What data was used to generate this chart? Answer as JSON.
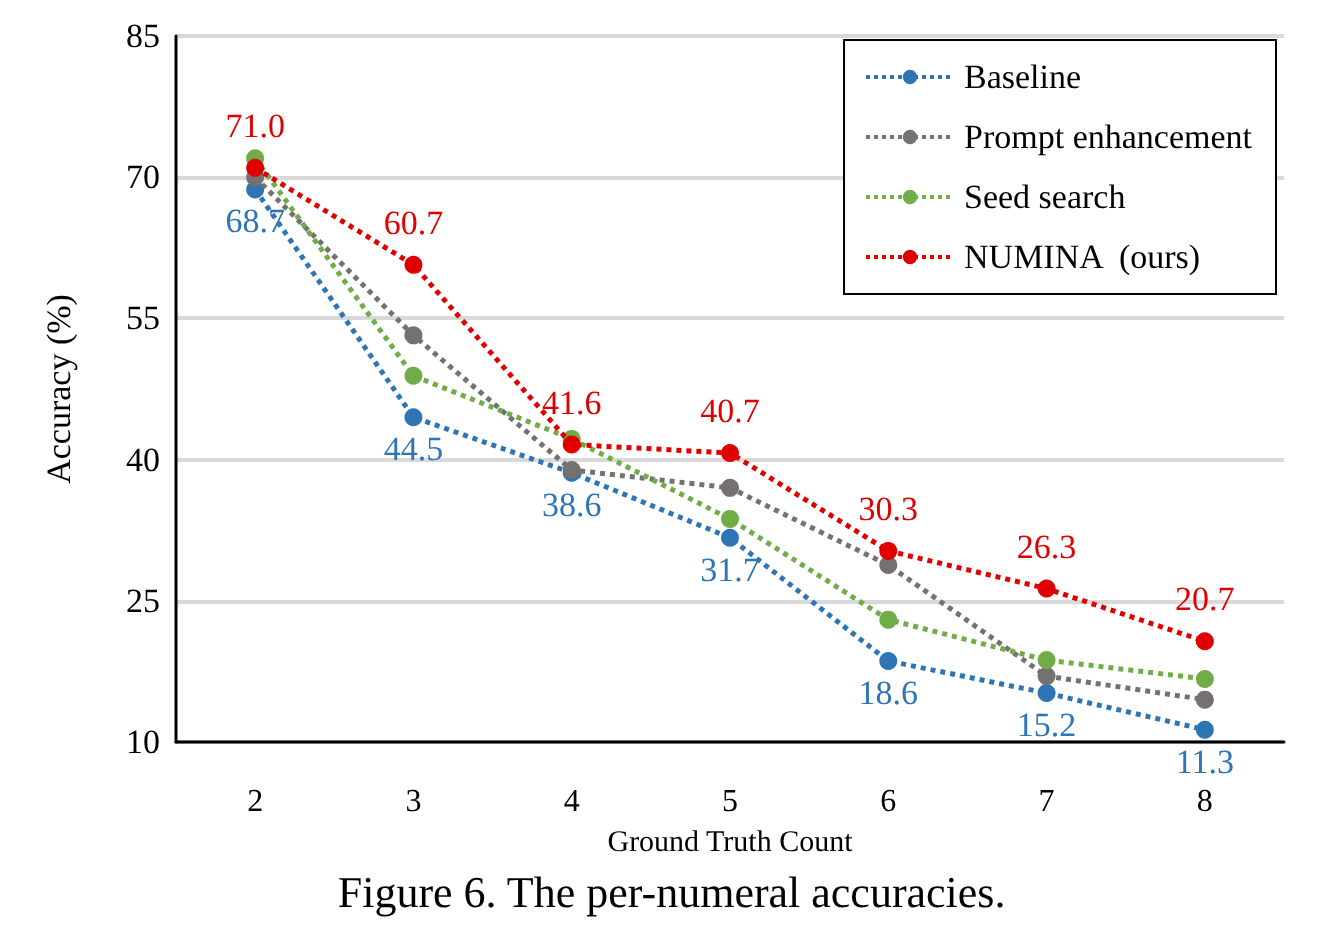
{
  "chart_data": {
    "type": "line",
    "xlabel": "Ground Truth Count",
    "ylabel": "Accuracy (%)",
    "categories": [
      "2",
      "3",
      "4",
      "5",
      "6",
      "7",
      "8"
    ],
    "series": [
      {
        "name": "Baseline",
        "color": "#2e75b6",
        "values": [
          68.7,
          44.5,
          38.6,
          31.7,
          18.6,
          15.2,
          11.3
        ],
        "value_labels": [
          "68.7",
          "44.5",
          "38.6",
          "31.7",
          "18.6",
          "15.2",
          "11.3"
        ]
      },
      {
        "name": "Prompt enhancement",
        "color": "#767171",
        "values": [
          70.0,
          53.2,
          38.9,
          37.0,
          28.8,
          17.0,
          14.5
        ]
      },
      {
        "name": "Seed search",
        "color": "#70ad47",
        "values": [
          72.0,
          48.9,
          42.2,
          33.7,
          23.0,
          18.7,
          16.7
        ]
      },
      {
        "name": "NUMINA  (ours)",
        "color": "#e00000",
        "values": [
          71.0,
          60.7,
          41.6,
          40.7,
          30.3,
          26.3,
          20.7
        ],
        "value_labels": [
          "71.0",
          "60.7",
          "41.6",
          "40.7",
          "30.3",
          "26.3",
          "20.7"
        ]
      }
    ],
    "ylim": [
      10,
      85
    ],
    "yticks": [
      10,
      25,
      40,
      55,
      70,
      85
    ],
    "grid": "y",
    "legend": "top right",
    "marker": "circle",
    "line_style": "dotted",
    "annotations": [
      "Figure 6. The per-numeral accuracies."
    ]
  }
}
